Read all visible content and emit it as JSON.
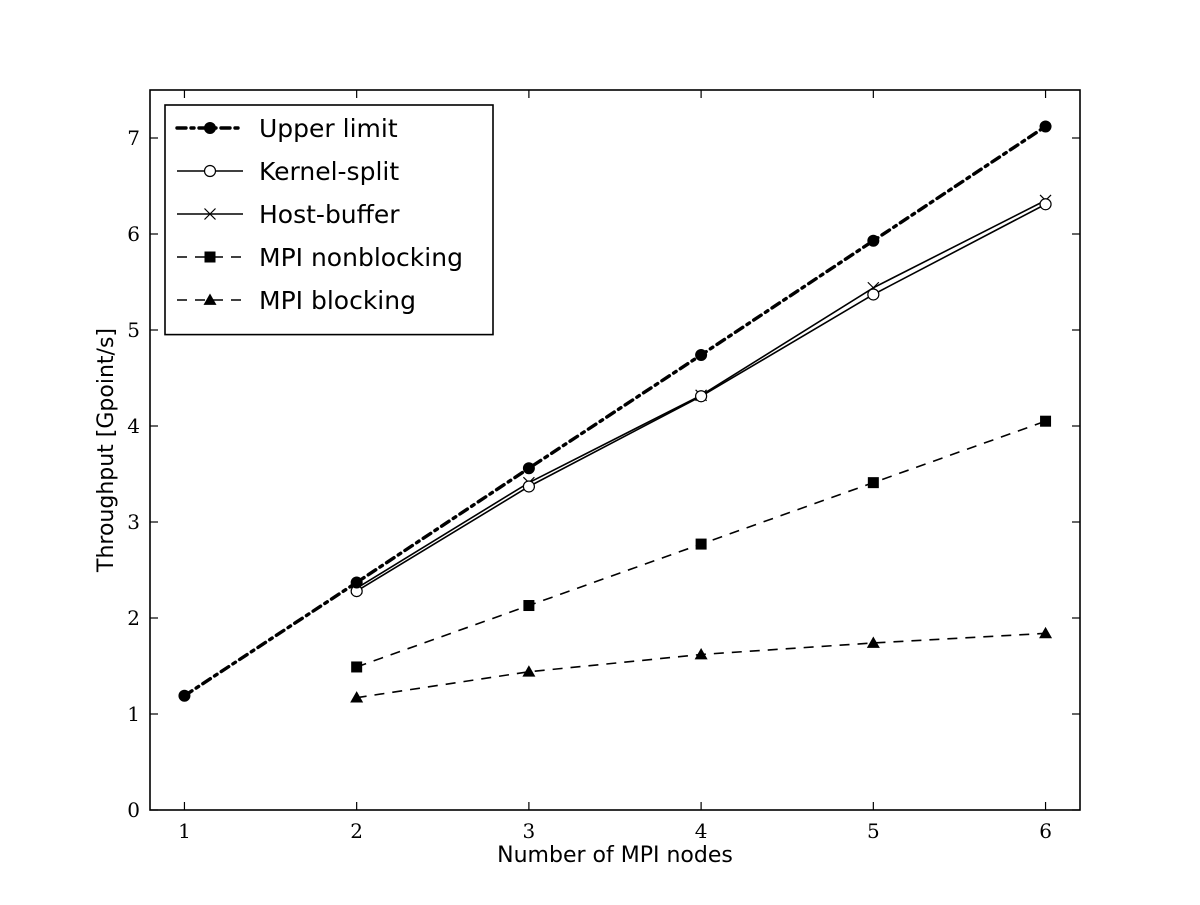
{
  "chart_data": {
    "type": "line",
    "title": "",
    "xlabel": "Number of MPI nodes",
    "ylabel": "Throughput [Gpoint/s]",
    "xlim": [
      0.8,
      6.2
    ],
    "ylim": [
      0,
      7.5
    ],
    "x_ticks": [
      1,
      2,
      3,
      4,
      5,
      6
    ],
    "y_ticks": [
      0,
      1,
      2,
      3,
      4,
      5,
      6,
      7
    ],
    "grid": false,
    "legend_position": "top-left",
    "colors": {
      "series": "#000000",
      "background": "#ffffff"
    },
    "series": [
      {
        "name": "Upper limit",
        "line_style": "dash-dot",
        "marker": "filled-circle",
        "x": [
          1,
          2,
          3,
          4,
          5,
          6
        ],
        "y": [
          1.19,
          2.37,
          3.56,
          4.74,
          5.93,
          7.12
        ]
      },
      {
        "name": "Kernel-split",
        "line_style": "solid",
        "marker": "open-circle",
        "x": [
          2,
          3,
          4,
          5,
          6
        ],
        "y": [
          2.28,
          3.37,
          4.31,
          5.37,
          6.31
        ]
      },
      {
        "name": "Host-buffer",
        "line_style": "solid",
        "marker": "x",
        "x": [
          2,
          3,
          4,
          5,
          6
        ],
        "y": [
          2.31,
          3.41,
          4.32,
          5.44,
          6.35
        ]
      },
      {
        "name": "MPI nonblocking",
        "line_style": "dashed",
        "marker": "filled-square",
        "x": [
          2,
          3,
          4,
          5,
          6
        ],
        "y": [
          1.49,
          2.13,
          2.77,
          3.41,
          4.05
        ]
      },
      {
        "name": "MPI blocking",
        "line_style": "dashed",
        "marker": "filled-triangle",
        "x": [
          2,
          3,
          4,
          5,
          6
        ],
        "y": [
          1.17,
          1.44,
          1.62,
          1.74,
          1.84
        ]
      }
    ]
  }
}
